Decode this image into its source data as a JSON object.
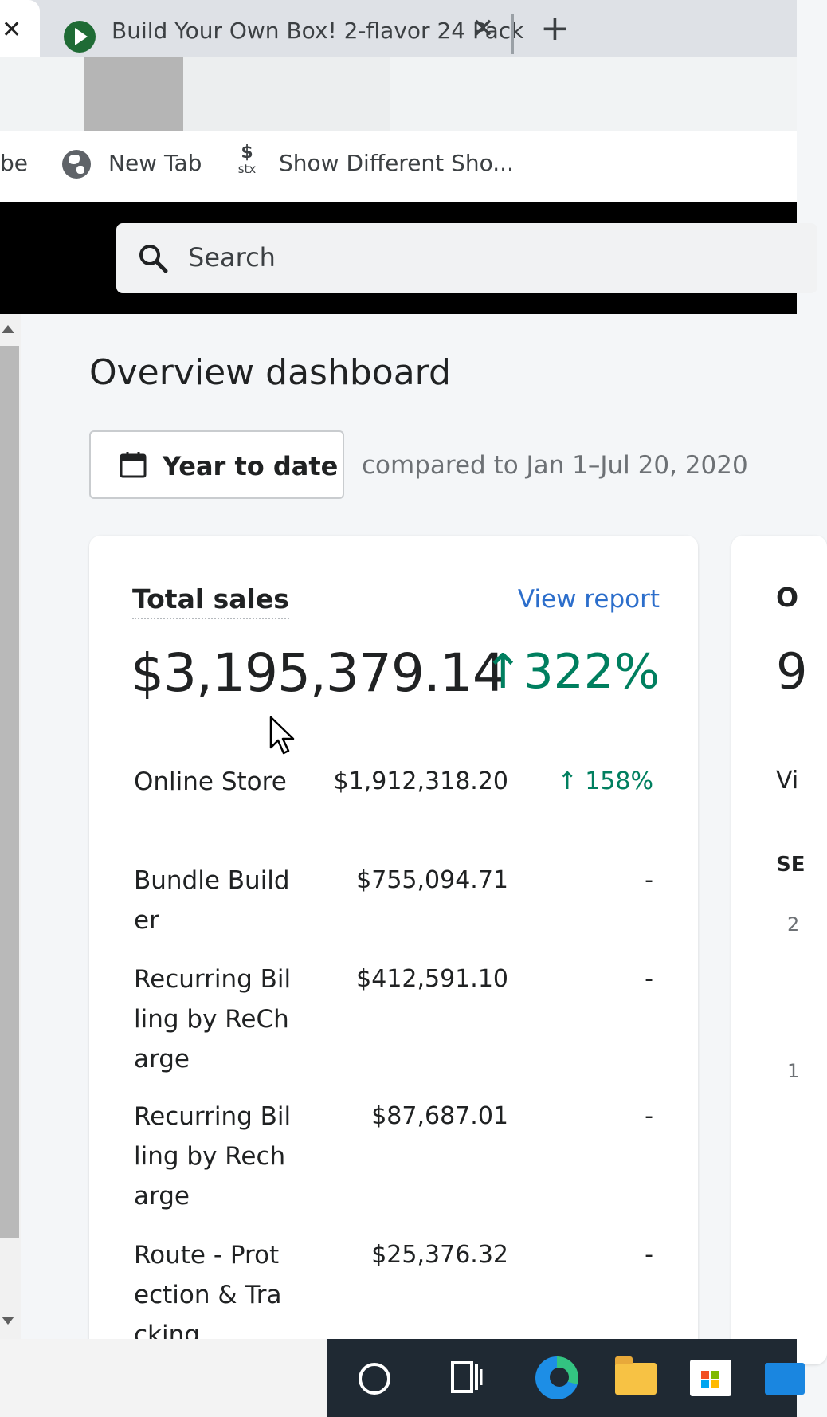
{
  "browser": {
    "tabs": [
      {
        "title": "",
        "close": "✕"
      },
      {
        "title": "Build Your Own Box! 2-flavor 24 Pack",
        "close": "✕"
      }
    ],
    "new_tab": "+",
    "bookmarks": [
      {
        "label": "be"
      },
      {
        "label": "New Tab"
      },
      {
        "label": "Show Different Sho..."
      }
    ],
    "stx_icon_top": "$",
    "stx_icon_bottom": "stx"
  },
  "app": {
    "search": {
      "placeholder": "Search"
    }
  },
  "dashboard": {
    "title": "Overview dashboard",
    "date_range_button": "Year to date",
    "comparison": "compared to Jan 1–Jul 20, 2020",
    "total_sales_card": {
      "title": "Total sales",
      "view_report": "View report",
      "total": "$3,195,379.14",
      "change": "↑322%",
      "rows": [
        {
          "label": "Online Store",
          "value": "$1,912,318.20",
          "change": "↑ 158%"
        },
        {
          "label": "Bundle Builder",
          "value": "$755,094.71",
          "change": "-"
        },
        {
          "label": "Recurring Billing by ReCharge",
          "value": "$412,591.10",
          "change": "-"
        },
        {
          "label": "Recurring Billing by Recharge",
          "value": "$87,687.01",
          "change": "-"
        },
        {
          "label": "Route - Protection & Tracking",
          "value": "$25,376.32",
          "change": "-"
        }
      ]
    },
    "second_card": {
      "title_partial": "O",
      "value_partial": "9",
      "line1_partial": "Vi",
      "line2_partial": "SE",
      "tick1_partial": "2",
      "tick2_partial": "1"
    }
  },
  "colors": {
    "link": "#2c6ecb",
    "positive": "#007f5f",
    "topbar": "#000000"
  },
  "icons": [
    "close-icon",
    "play-favicon",
    "plus-icon",
    "globe-icon",
    "search-icon",
    "calendar-icon",
    "arrow-up-icon",
    "mouse-cursor-icon"
  ]
}
